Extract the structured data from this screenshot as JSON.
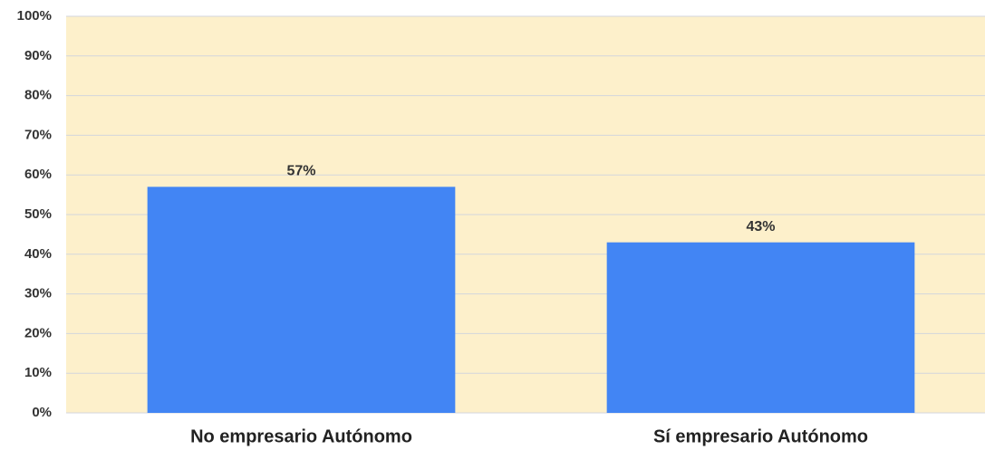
{
  "chart_data": {
    "type": "bar",
    "categories": [
      "No empresario Autónomo",
      "Sí empresario Autónomo"
    ],
    "values": [
      57,
      43
    ],
    "value_labels": [
      "57%",
      "43%"
    ],
    "color": "#4285f4",
    "ylim": [
      0,
      100
    ],
    "yticks": [
      {
        "value": 0,
        "label": "0%"
      },
      {
        "value": 10,
        "label": "10%"
      },
      {
        "value": 20,
        "label": "20%"
      },
      {
        "value": 30,
        "label": "30%"
      },
      {
        "value": 40,
        "label": "40%"
      },
      {
        "value": 50,
        "label": "50%"
      },
      {
        "value": 60,
        "label": "60%"
      },
      {
        "value": 70,
        "label": "70%"
      },
      {
        "value": 80,
        "label": "80%"
      },
      {
        "value": 90,
        "label": "90%"
      },
      {
        "value": 100,
        "label": "100%"
      }
    ],
    "grid": true
  }
}
